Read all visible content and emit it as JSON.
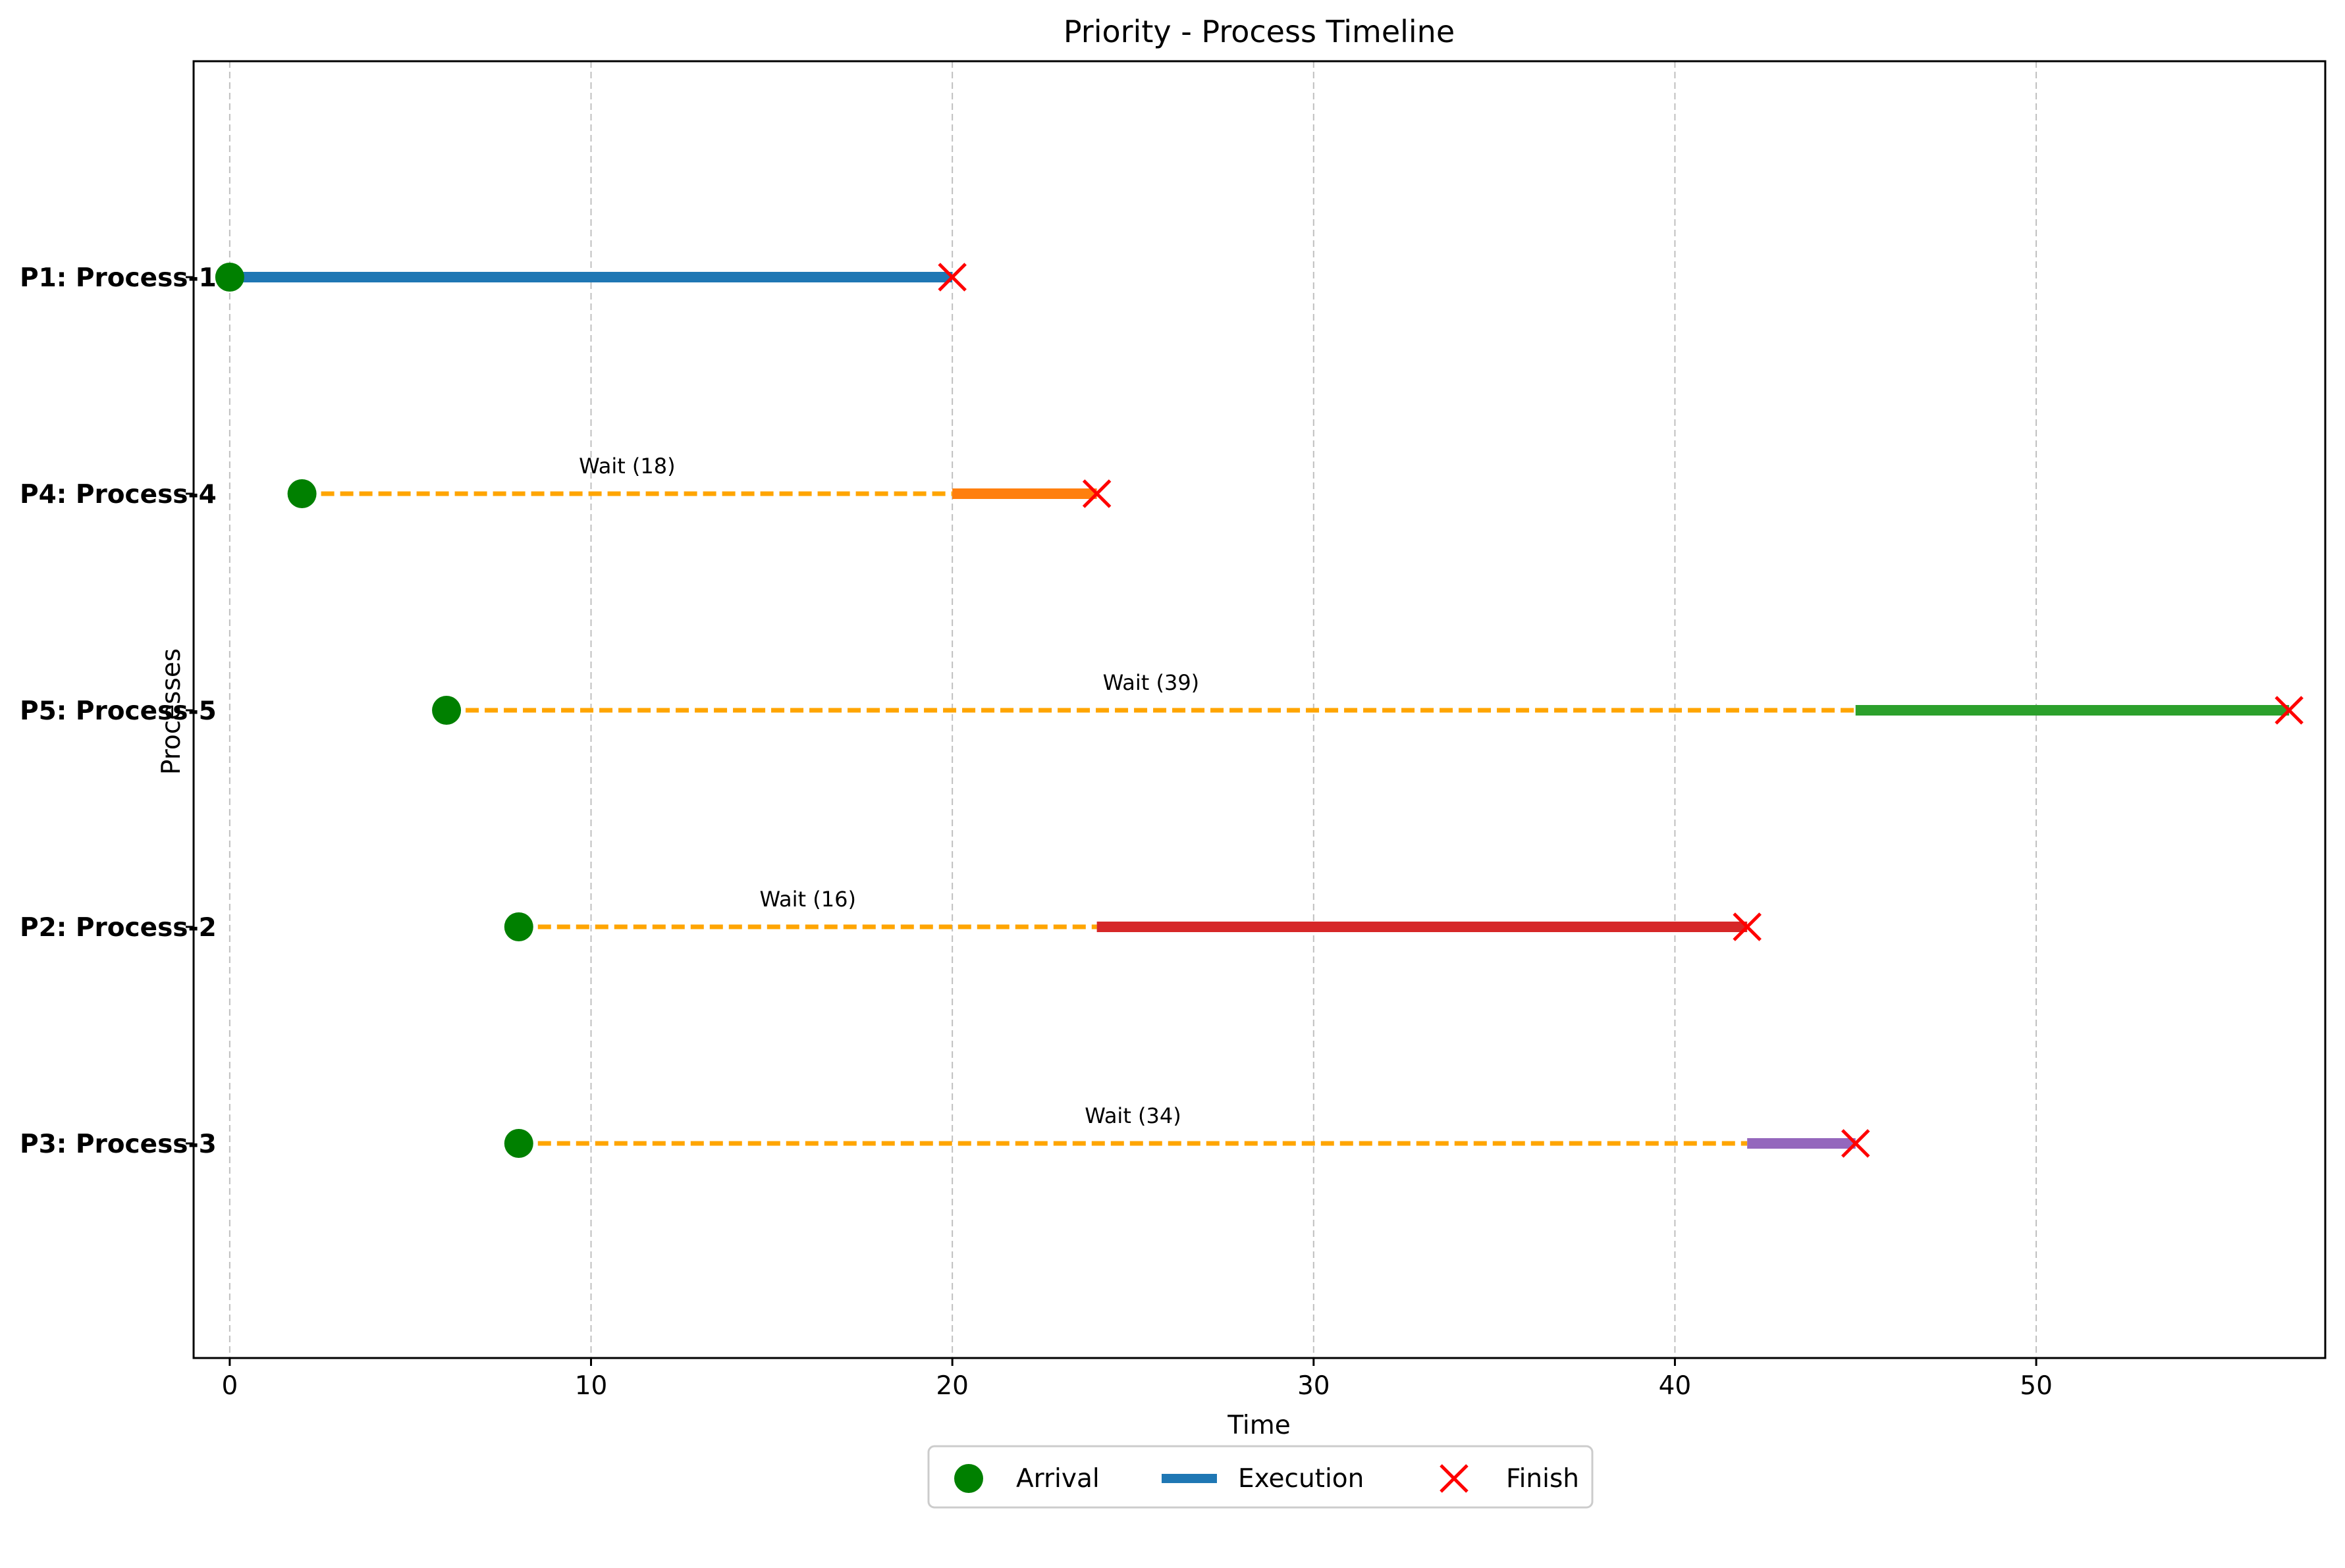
{
  "chart_data": {
    "type": "timeline",
    "title": "Priority - Process Timeline",
    "xlabel": "Time",
    "ylabel": "Processes",
    "xlim": [
      -1,
      58
    ],
    "x_ticks": [
      0,
      10,
      20,
      30,
      40,
      50
    ],
    "grid": "vertical dashed",
    "legend_position": "bottom-center",
    "legend": {
      "arrival": "Arrival",
      "execution": "Execution",
      "finish": "Finish"
    },
    "colors": {
      "arrival": "#008000",
      "wait": "#FFA500",
      "finish": "#FF0000",
      "legend_execution": "#1f77b4"
    },
    "processes": [
      {
        "label": "P1: Process-1",
        "arrival": 0,
        "start": 0,
        "finish": 20,
        "wait_label": "",
        "color": "#1f77b4"
      },
      {
        "label": "P4: Process-4",
        "arrival": 2,
        "start": 20,
        "finish": 24,
        "wait_label": "Wait (18)",
        "color": "#ff7f0e"
      },
      {
        "label": "P5: Process-5",
        "arrival": 6,
        "start": 45,
        "finish": 57,
        "wait_label": "Wait (39)",
        "color": "#2ca02c"
      },
      {
        "label": "P2: Process-2",
        "arrival": 8,
        "start": 24,
        "finish": 42,
        "wait_label": "Wait (16)",
        "color": "#d62728"
      },
      {
        "label": "P3: Process-3",
        "arrival": 8,
        "start": 42,
        "finish": 45,
        "wait_label": "Wait (34)",
        "color": "#9467bd"
      }
    ]
  }
}
